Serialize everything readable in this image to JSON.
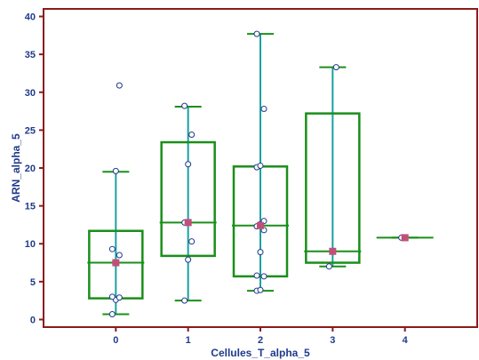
{
  "chart_data": {
    "type": "boxplot",
    "xlabel": "Cellules_T_alpha_5",
    "ylabel": "ARN_alpha_5",
    "xlim": [
      -1,
      5
    ],
    "ylim": [
      -1,
      41
    ],
    "xticks": [
      "0",
      "1",
      "2",
      "3",
      "4"
    ],
    "yticks": [
      "0",
      "5",
      "10",
      "15",
      "20",
      "25",
      "30",
      "35",
      "40"
    ],
    "grid": false,
    "colors": {
      "frame": "#8b1a1a",
      "box": "#1a8f1a",
      "whisker_line": "#1aa0a0",
      "point_stroke": "#1f3a8a",
      "mean_marker": "#c0507a",
      "text": "#1f3a8a"
    },
    "groups": [
      {
        "category": "0",
        "whisker_low": 0.7,
        "q1": 2.8,
        "median": 7.5,
        "q3": 11.7,
        "whisker_high": 19.5,
        "mean": 7.5,
        "points": [
          0.7,
          2.6,
          2.9,
          3.0,
          7.5,
          8.5,
          9.3,
          19.6,
          30.9
        ]
      },
      {
        "category": "1",
        "whisker_low": 2.5,
        "q1": 8.4,
        "median": 12.8,
        "q3": 23.4,
        "whisker_high": 28.1,
        "mean": 12.8,
        "points": [
          2.5,
          7.9,
          10.3,
          12.8,
          20.5,
          24.4,
          28.2
        ]
      },
      {
        "category": "2",
        "whisker_low": 3.8,
        "q1": 5.7,
        "median": 12.4,
        "q3": 20.2,
        "whisker_high": 37.7,
        "mean": 12.4,
        "points": [
          3.8,
          3.9,
          5.7,
          5.8,
          8.9,
          11.8,
          12.3,
          12.6,
          13.0,
          20.1,
          20.3,
          27.8,
          37.7
        ]
      },
      {
        "category": "3",
        "whisker_low": 7.0,
        "q1": 7.5,
        "median": 9.0,
        "q3": 27.2,
        "whisker_high": 33.3,
        "mean": 9.0,
        "points": [
          7.0,
          9.0,
          33.3
        ]
      },
      {
        "category": "4",
        "whisker_low": 10.8,
        "q1": 10.8,
        "median": 10.8,
        "q3": 10.8,
        "whisker_high": 10.8,
        "mean": 10.8,
        "points": [
          10.8
        ]
      }
    ]
  }
}
